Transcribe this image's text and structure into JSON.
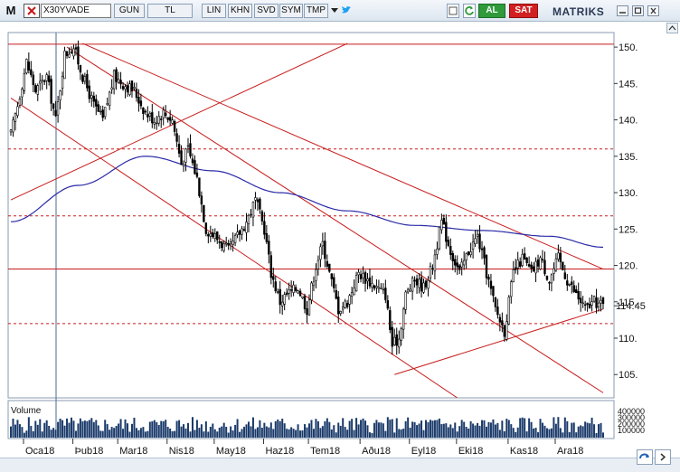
{
  "toolbar": {
    "menu_label": "M",
    "symbol": "X30YVADE",
    "period": "GUN",
    "currency": "TL",
    "buttons": [
      "LIN",
      "KHN",
      "SVD",
      "SYM",
      "TMP"
    ],
    "buy_label": "AL",
    "sell_label": "SAT",
    "brand": "MATRIKS"
  },
  "chart_data": {
    "type": "candlestick",
    "symbol": "X30YVADE",
    "title": "",
    "xlabel": "",
    "ylabel": "",
    "ylim": [
      101.8,
      152.0
    ],
    "y_ticks": [
      105,
      110,
      115,
      120,
      125,
      130,
      135,
      140,
      145,
      150
    ],
    "y_tick_labels": [
      "105.",
      "110.",
      "115.",
      "120.",
      "125.",
      "130.",
      "135.",
      "140.",
      "145.",
      "150."
    ],
    "last_price": 114.45,
    "last_price_label": "114.45",
    "x_month_labels": [
      "Oca18",
      "Þub18",
      "Mar18",
      "Nis18",
      "May18",
      "Haz18",
      "Tem18",
      "Aðu18",
      "Eyl18",
      "Eki18",
      "Kas18",
      "Ara18"
    ],
    "close_keypoints": [
      [
        0,
        138
      ],
      [
        3,
        142
      ],
      [
        7,
        148
      ],
      [
        11,
        144
      ],
      [
        16,
        146
      ],
      [
        20,
        140
      ],
      [
        24,
        149
      ],
      [
        28,
        150
      ],
      [
        32,
        146
      ],
      [
        37,
        142
      ],
      [
        41,
        140
      ],
      [
        46,
        146
      ],
      [
        50,
        145
      ],
      [
        55,
        144
      ],
      [
        60,
        141
      ],
      [
        64,
        140
      ],
      [
        68,
        141
      ],
      [
        72,
        140
      ],
      [
        76,
        134
      ],
      [
        79,
        136
      ],
      [
        83,
        132
      ],
      [
        87,
        125
      ],
      [
        91,
        124
      ],
      [
        94,
        123
      ],
      [
        97,
        122
      ],
      [
        101,
        124
      ],
      [
        105,
        126
      ],
      [
        109,
        129
      ],
      [
        113,
        125
      ],
      [
        116,
        119
      ],
      [
        120,
        115
      ],
      [
        123,
        116
      ],
      [
        128,
        117
      ],
      [
        132,
        114
      ],
      [
        136,
        120
      ],
      [
        139,
        123
      ],
      [
        142,
        119
      ],
      [
        146,
        114
      ],
      [
        150,
        115
      ],
      [
        155,
        119
      ],
      [
        159,
        118
      ],
      [
        163,
        117
      ],
      [
        167,
        116
      ],
      [
        170,
        109
      ],
      [
        173,
        110
      ],
      [
        176,
        116
      ],
      [
        180,
        118
      ],
      [
        184,
        117
      ],
      [
        188,
        120
      ],
      [
        192,
        126
      ],
      [
        196,
        122
      ],
      [
        200,
        119
      ],
      [
        204,
        122
      ],
      [
        208,
        124
      ],
      [
        212,
        119
      ],
      [
        216,
        114
      ],
      [
        220,
        111
      ],
      [
        224,
        119
      ],
      [
        228,
        121
      ],
      [
        232,
        119
      ],
      [
        236,
        121
      ],
      [
        240,
        118
      ],
      [
        244,
        121
      ],
      [
        248,
        118
      ],
      [
        252,
        116
      ],
      [
        256,
        114
      ],
      [
        260,
        115
      ],
      [
        264,
        114.45
      ]
    ],
    "moving_average": {
      "name": "",
      "values": [
        [
          0,
          126
        ],
        [
          30,
          131
        ],
        [
          60,
          135
        ],
        [
          90,
          133
        ],
        [
          120,
          130
        ],
        [
          150,
          127.5
        ],
        [
          180,
          125.5
        ],
        [
          210,
          124.8
        ],
        [
          240,
          124
        ],
        [
          264,
          122.5
        ]
      ]
    },
    "volume": {
      "label": "Volume",
      "y_tick_labels": [
        "400000",
        "300000",
        "200000",
        "100000"
      ]
    },
    "horizontal_lines": [
      {
        "value": 150.4,
        "style": "solid"
      },
      {
        "value": 136.0,
        "style": "dashed"
      },
      {
        "value": 126.8,
        "style": "dashed"
      },
      {
        "value": 119.5,
        "style": "solid"
      },
      {
        "value": 112.0,
        "style": "dashed"
      }
    ],
    "trend_lines": [
      {
        "from": [
          0,
          129
        ],
        "to": [
          150,
          150.5
        ]
      },
      {
        "from": [
          32,
          150.5
        ],
        "to": [
          264,
          119.5
        ]
      },
      {
        "from": [
          25,
          150
        ],
        "to": [
          264,
          102.5
        ]
      },
      {
        "from": [
          0,
          143
        ],
        "to": [
          199,
          101.8
        ]
      },
      {
        "from": [
          171,
          105
        ],
        "to": [
          264,
          114
        ]
      }
    ],
    "colors": {
      "candles": "#000000",
      "moving_average": "#2a2aa8",
      "levels": "#c81c1c",
      "grid": "#b0b0b0"
    }
  }
}
